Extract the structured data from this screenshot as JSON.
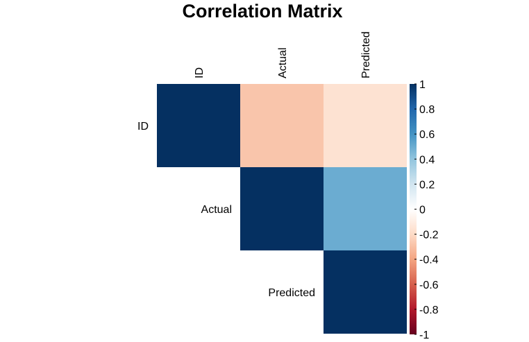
{
  "chart_data": {
    "type": "heatmap",
    "title": "Correlation Matrix",
    "variables": [
      "ID",
      "Actual",
      "Predicted"
    ],
    "matrix": [
      [
        1.0,
        -0.28,
        -0.16
      ],
      [
        -0.28,
        1.0,
        0.5
      ],
      [
        -0.16,
        0.5,
        1.0
      ]
    ],
    "display": "upper",
    "color_scale": {
      "min": -1,
      "max": 1,
      "ticks": [
        "1",
        "0.8",
        "0.6",
        "0.4",
        "0.2",
        "0",
        "-0.2",
        "-0.4",
        "-0.6",
        "-0.8",
        "-1"
      ],
      "stops": [
        {
          "value": -1.0,
          "color": "#67001F"
        },
        {
          "value": -0.8,
          "color": "#B2182B"
        },
        {
          "value": -0.6,
          "color": "#D6604D"
        },
        {
          "value": -0.4,
          "color": "#F4A582"
        },
        {
          "value": -0.2,
          "color": "#FDDBC7"
        },
        {
          "value": 0.0,
          "color": "#FFFFFF"
        },
        {
          "value": 0.2,
          "color": "#D1E5F0"
        },
        {
          "value": 0.4,
          "color": "#92C5DE"
        },
        {
          "value": 0.6,
          "color": "#4393C3"
        },
        {
          "value": 0.8,
          "color": "#2166AC"
        },
        {
          "value": 1.0,
          "color": "#053061"
        }
      ],
      "legend_position": "right"
    }
  }
}
